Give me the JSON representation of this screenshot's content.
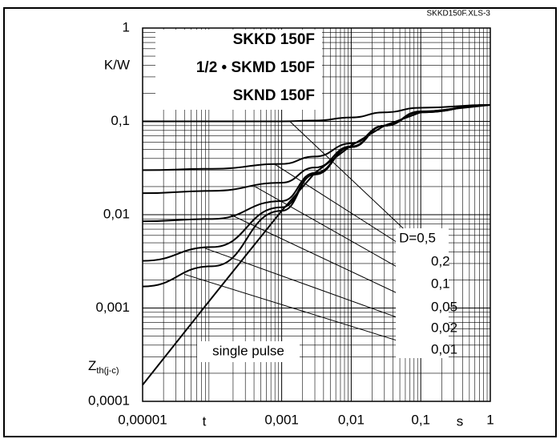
{
  "chart_data": {
    "type": "line",
    "file_label": "SKKD150F.XLS-3",
    "title_lines": [
      "SKKD  150F",
      "1/2 • SKMD  150F",
      "SKND  150F"
    ],
    "y_unit": "K/W",
    "y_label": "Z",
    "y_label_sub": "th(j-c)",
    "x_label": "t",
    "x_unit": "s",
    "log_x": true,
    "log_y": true,
    "grid": true,
    "color": "#000000",
    "xlim": [
      1e-05,
      1
    ],
    "ylim": [
      0.0001,
      1
    ],
    "xticks": [
      {
        "value": 1e-05,
        "label": "0,00001"
      },
      {
        "value": 0.001,
        "label": "0,001"
      },
      {
        "value": 0.01,
        "label": "0,01"
      },
      {
        "value": 0.1,
        "label": "0,1"
      },
      1
    ],
    "yticks": [
      {
        "value": 0.0001,
        "label": "0,0001"
      },
      {
        "value": 0.001,
        "label": "0,001"
      },
      {
        "value": 0.01,
        "label": "0,01"
      },
      {
        "value": 0.1,
        "label": "0,1"
      },
      1
    ],
    "x": [
      1e-05,
      0.0001,
      0.001,
      0.003,
      0.01,
      0.03,
      0.1,
      1
    ],
    "series": [
      {
        "name": "D=0,5",
        "values": [
          0.1,
          0.1,
          0.1,
          0.102,
          0.11,
          0.125,
          0.14,
          0.15
        ]
      },
      {
        "name": "0,2",
        "values": [
          0.03,
          0.031,
          0.035,
          0.042,
          0.058,
          0.09,
          0.128,
          0.15
        ]
      },
      {
        "name": "0,1",
        "values": [
          0.017,
          0.018,
          0.022,
          0.032,
          0.054,
          0.09,
          0.127,
          0.15
        ]
      },
      {
        "name": "0,05",
        "values": [
          0.0085,
          0.009,
          0.014,
          0.028,
          0.053,
          0.09,
          0.126,
          0.15
        ]
      },
      {
        "name": "0,02",
        "values": [
          0.0032,
          0.0045,
          0.012,
          0.027,
          0.053,
          0.09,
          0.125,
          0.15
        ]
      },
      {
        "name": "0,01",
        "values": [
          0.0017,
          0.0028,
          0.011,
          0.027,
          0.053,
          0.09,
          0.125,
          0.15
        ]
      },
      {
        "name": "single pulse",
        "values": [
          0.00015,
          0.0013,
          0.011,
          0.028,
          0.055,
          0.09,
          0.125,
          0.15
        ]
      }
    ]
  }
}
